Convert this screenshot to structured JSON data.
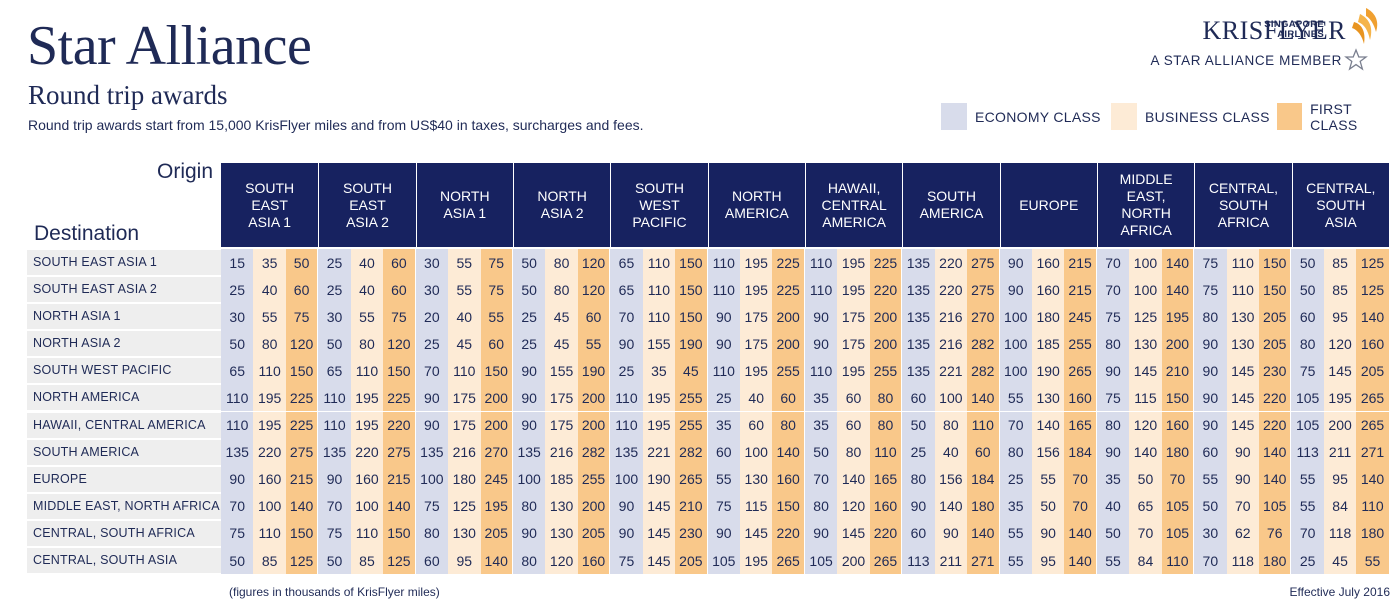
{
  "header": {
    "title": "Star Alliance",
    "subtitle": "Round trip awards",
    "intro": "Round trip awards start from 15,000 KrisFlyer miles and from US$40 in taxes, surcharges and fees."
  },
  "brand": {
    "airline_line1": "SINGAPORE",
    "airline_line2": "AIRLINES",
    "program": "KRISFLYER",
    "member_text": "A STAR ALLIANCE MEMBER"
  },
  "legend": [
    {
      "label": "ECONOMY CLASS",
      "color": "#d8dceb"
    },
    {
      "label": "BUSINESS CLASS",
      "color": "#fdebd6"
    },
    {
      "label": "FIRST CLASS",
      "color": "#f9c88a"
    }
  ],
  "table": {
    "origin_label": "Origin",
    "destination_label": "Destination",
    "origins": [
      "SOUTH\nEAST\nASIA 1",
      "SOUTH\nEAST\nASIA 2",
      "NORTH\nASIA 1",
      "NORTH\nASIA 2",
      "SOUTH\nWEST\nPACIFIC",
      "NORTH\nAMERICA",
      "HAWAII,\nCENTRAL\nAMERICA",
      "SOUTH\nAMERICA",
      "EUROPE",
      "MIDDLE\nEAST,\nNORTH\nAFRICA",
      "CENTRAL,\nSOUTH\nAFRICA",
      "CENTRAL,\nSOUTH\nASIA"
    ],
    "rows": [
      {
        "destination": "SOUTH EAST ASIA 1",
        "values": [
          15,
          35,
          50,
          25,
          40,
          60,
          30,
          55,
          75,
          50,
          80,
          120,
          65,
          110,
          150,
          110,
          195,
          225,
          110,
          195,
          225,
          135,
          220,
          275,
          90,
          160,
          215,
          70,
          100,
          140,
          75,
          110,
          150,
          50,
          85,
          125
        ]
      },
      {
        "destination": "SOUTH EAST ASIA 2",
        "values": [
          25,
          40,
          60,
          25,
          40,
          60,
          30,
          55,
          75,
          50,
          80,
          120,
          65,
          110,
          150,
          110,
          195,
          225,
          110,
          195,
          220,
          135,
          220,
          275,
          90,
          160,
          215,
          70,
          100,
          140,
          75,
          110,
          150,
          50,
          85,
          125
        ]
      },
      {
        "destination": "NORTH ASIA 1",
        "values": [
          30,
          55,
          75,
          30,
          55,
          75,
          20,
          40,
          55,
          25,
          45,
          60,
          70,
          110,
          150,
          90,
          175,
          200,
          90,
          175,
          200,
          135,
          216,
          270,
          100,
          180,
          245,
          75,
          125,
          195,
          80,
          130,
          205,
          60,
          95,
          140
        ]
      },
      {
        "destination": "NORTH ASIA 2",
        "values": [
          50,
          80,
          120,
          50,
          80,
          120,
          25,
          45,
          60,
          25,
          45,
          55,
          90,
          155,
          190,
          90,
          175,
          200,
          90,
          175,
          200,
          135,
          216,
          282,
          100,
          185,
          255,
          80,
          130,
          200,
          90,
          130,
          205,
          80,
          120,
          160
        ]
      },
      {
        "destination": "SOUTH WEST PACIFIC",
        "values": [
          65,
          110,
          150,
          65,
          110,
          150,
          70,
          110,
          150,
          90,
          155,
          190,
          25,
          35,
          45,
          110,
          195,
          255,
          110,
          195,
          255,
          135,
          221,
          282,
          100,
          190,
          265,
          90,
          145,
          210,
          90,
          145,
          230,
          75,
          145,
          205
        ]
      },
      {
        "destination": "NORTH AMERICA",
        "values": [
          110,
          195,
          225,
          110,
          195,
          225,
          90,
          175,
          200,
          90,
          175,
          200,
          110,
          195,
          255,
          25,
          40,
          60,
          35,
          60,
          80,
          60,
          100,
          140,
          55,
          130,
          160,
          75,
          115,
          150,
          90,
          145,
          220,
          105,
          195,
          265
        ]
      },
      {
        "destination": "HAWAII, CENTRAL AMERICA",
        "values": [
          110,
          195,
          225,
          110,
          195,
          220,
          90,
          175,
          200,
          90,
          175,
          200,
          110,
          195,
          255,
          35,
          60,
          80,
          35,
          60,
          80,
          50,
          80,
          110,
          70,
          140,
          165,
          80,
          120,
          160,
          90,
          145,
          220,
          105,
          200,
          265
        ]
      },
      {
        "destination": "SOUTH AMERICA",
        "values": [
          135,
          220,
          275,
          135,
          220,
          275,
          135,
          216,
          270,
          135,
          216,
          282,
          135,
          221,
          282,
          60,
          100,
          140,
          50,
          80,
          110,
          25,
          40,
          60,
          80,
          156,
          184,
          90,
          140,
          180,
          60,
          90,
          140,
          113,
          211,
          271
        ]
      },
      {
        "destination": "EUROPE",
        "values": [
          90,
          160,
          215,
          90,
          160,
          215,
          100,
          180,
          245,
          100,
          185,
          255,
          100,
          190,
          265,
          55,
          130,
          160,
          70,
          140,
          165,
          80,
          156,
          184,
          25,
          55,
          70,
          35,
          50,
          70,
          55,
          90,
          140,
          55,
          95,
          140
        ]
      },
      {
        "destination": "MIDDLE EAST, NORTH AFRICA",
        "values": [
          70,
          100,
          140,
          70,
          100,
          140,
          75,
          125,
          195,
          80,
          130,
          200,
          90,
          145,
          210,
          75,
          115,
          150,
          80,
          120,
          160,
          90,
          140,
          180,
          35,
          50,
          70,
          40,
          65,
          105,
          50,
          70,
          105,
          55,
          84,
          110
        ]
      },
      {
        "destination": "CENTRAL, SOUTH AFRICA",
        "values": [
          75,
          110,
          150,
          75,
          110,
          150,
          80,
          130,
          205,
          90,
          130,
          205,
          90,
          145,
          230,
          90,
          145,
          220,
          90,
          145,
          220,
          60,
          90,
          140,
          55,
          90,
          140,
          50,
          70,
          105,
          30,
          62,
          76,
          70,
          118,
          180
        ]
      },
      {
        "destination": "CENTRAL, SOUTH ASIA",
        "values": [
          50,
          85,
          125,
          50,
          85,
          125,
          60,
          95,
          140,
          80,
          120,
          160,
          75,
          145,
          205,
          105,
          195,
          265,
          105,
          200,
          265,
          113,
          211,
          271,
          55,
          95,
          140,
          55,
          84,
          110,
          70,
          118,
          180,
          25,
          45,
          55
        ]
      }
    ]
  },
  "footer": {
    "note": "(figures in thousands of KrisFlyer miles)",
    "effective": "Effective July 2016"
  }
}
